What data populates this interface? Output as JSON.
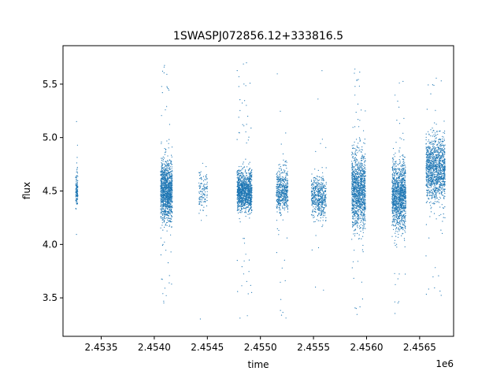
{
  "chart_data": {
    "type": "scatter",
    "title": "1SWASPJ072856.12+333816.5",
    "xlabel": "time",
    "ylabel": "flux",
    "x_offset_label": "1e6",
    "xlim": [
      2453140,
      2456820
    ],
    "ylim": [
      3.14,
      5.86
    ],
    "x_ticks": [
      2453500,
      2454000,
      2454500,
      2455000,
      2455500,
      2456000,
      2456500
    ],
    "x_tick_labels": [
      "2.4535",
      "2.4540",
      "2.4545",
      "2.4550",
      "2.4555",
      "2.4560",
      "2.4565"
    ],
    "y_ticks": [
      3.5,
      4.0,
      4.5,
      5.0,
      5.5
    ],
    "y_tick_labels": [
      "3.5",
      "4.0",
      "4.5",
      "5.0",
      "5.5"
    ],
    "grid": false,
    "marker_color": "#1f77b4",
    "seasons": [
      {
        "x_start": 2453260,
        "x_end": 2453280,
        "y_center": 4.5,
        "y_spread": 0.18,
        "density": "low"
      },
      {
        "x_start": 2454060,
        "x_end": 2454170,
        "y_center": 4.5,
        "y_spread": 0.28,
        "density": "high"
      },
      {
        "x_start": 2454420,
        "x_end": 2454500,
        "y_center": 4.5,
        "y_spread": 0.2,
        "density": "low"
      },
      {
        "x_start": 2454780,
        "x_end": 2454920,
        "y_center": 4.5,
        "y_spread": 0.18,
        "density": "high"
      },
      {
        "x_start": 2455150,
        "x_end": 2455260,
        "y_center": 4.5,
        "y_spread": 0.2,
        "density": "medium"
      },
      {
        "x_start": 2455480,
        "x_end": 2455620,
        "y_center": 4.45,
        "y_spread": 0.2,
        "density": "medium"
      },
      {
        "x_start": 2455860,
        "x_end": 2455990,
        "y_center": 4.5,
        "y_spread": 0.35,
        "density": "high"
      },
      {
        "x_start": 2456240,
        "x_end": 2456370,
        "y_center": 4.45,
        "y_spread": 0.3,
        "density": "high"
      },
      {
        "x_start": 2456560,
        "x_end": 2456740,
        "y_center": 4.7,
        "y_spread": 0.3,
        "density": "high"
      }
    ]
  }
}
